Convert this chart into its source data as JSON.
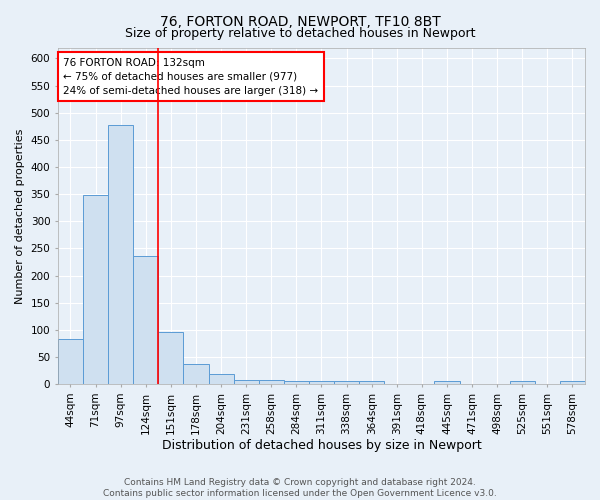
{
  "title1": "76, FORTON ROAD, NEWPORT, TF10 8BT",
  "title2": "Size of property relative to detached houses in Newport",
  "xlabel": "Distribution of detached houses by size in Newport",
  "ylabel": "Number of detached properties",
  "bar_labels": [
    "44sqm",
    "71sqm",
    "97sqm",
    "124sqm",
    "151sqm",
    "178sqm",
    "204sqm",
    "231sqm",
    "258sqm",
    "284sqm",
    "311sqm",
    "338sqm",
    "364sqm",
    "391sqm",
    "418sqm",
    "445sqm",
    "471sqm",
    "498sqm",
    "525sqm",
    "551sqm",
    "578sqm"
  ],
  "bar_values": [
    83,
    348,
    477,
    236,
    97,
    37,
    19,
    8,
    8,
    6,
    6,
    6,
    6,
    0,
    0,
    5,
    0,
    0,
    5,
    0,
    5
  ],
  "bar_color": "#cfe0f0",
  "bar_edge_color": "#5b9bd5",
  "red_line_x": 3.5,
  "annotation_text": "76 FORTON ROAD: 132sqm\n← 75% of detached houses are smaller (977)\n24% of semi-detached houses are larger (318) →",
  "annotation_box_color": "white",
  "annotation_box_edge_color": "red",
  "ylim": [
    0,
    620
  ],
  "yticks": [
    0,
    50,
    100,
    150,
    200,
    250,
    300,
    350,
    400,
    450,
    500,
    550,
    600
  ],
  "footnote": "Contains HM Land Registry data © Crown copyright and database right 2024.\nContains public sector information licensed under the Open Government Licence v3.0.",
  "bg_color": "#e8f0f8",
  "grid_color": "#ffffff",
  "title1_fontsize": 10,
  "title2_fontsize": 9,
  "xlabel_fontsize": 9,
  "ylabel_fontsize": 8,
  "tick_fontsize": 7.5,
  "footnote_fontsize": 6.5
}
